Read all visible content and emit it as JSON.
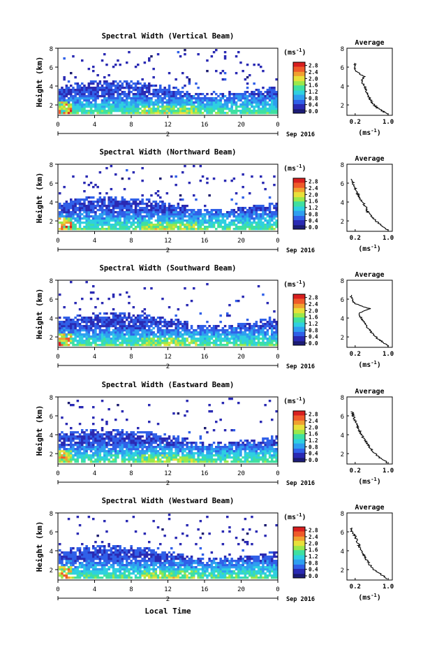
{
  "figure": {
    "xaxis_title": "Local Time",
    "colorbar_unit": "(ms",
    "colorbar_unit_sup": "-1",
    "colorbar_unit_close": ")",
    "avg_title": "Average",
    "avg_xunit": "(ms",
    "avg_xunit_sup": "-1",
    "avg_xunit_close": ")",
    "ylabel": "Height (km)",
    "date_label": "Sep 2016",
    "day_label": "2"
  },
  "colors": {
    "low": "#1d1d7a",
    "scale": [
      "#1b1b6f",
      "#2a2ab3",
      "#3060e8",
      "#2f9ff0",
      "#2fd0e0",
      "#3fe0a0",
      "#9be84a",
      "#e8e03a",
      "#f0a030",
      "#ef5a2a",
      "#d81f1f"
    ]
  },
  "chart_data": [
    {
      "type": "heatmap",
      "title": "Spectral Width (Vertical Beam)",
      "x_ticks": [
        "0",
        "4",
        "8",
        "12",
        "16",
        "20",
        "0"
      ],
      "x_range_hours": [
        0,
        24
      ],
      "y_ticks": [
        "2",
        "4",
        "6",
        "8"
      ],
      "ylim_km": [
        0.9,
        8.0
      ],
      "colorbar_ticks": [
        "0.0",
        "0.4",
        "0.8",
        "1.2",
        "1.6",
        "2.0",
        "2.4",
        "2.8"
      ],
      "clim": [
        0,
        3.0
      ],
      "average_profile": {
        "x_ticks": [
          "0.2",
          "1.0"
        ],
        "y_ticks": [
          "2",
          "4",
          "6",
          "8"
        ],
        "xlim": [
          0,
          1.1
        ],
        "height_km": [
          1.0,
          1.5,
          2.0,
          2.5,
          3.0,
          3.5,
          4.0,
          4.5,
          5.0,
          5.5,
          6.0,
          6.5
        ],
        "width_ms": [
          1.0,
          0.8,
          0.65,
          0.58,
          0.52,
          0.47,
          0.42,
          0.35,
          0.42,
          0.25,
          0.18,
          0.22
        ]
      }
    },
    {
      "type": "heatmap",
      "title": "Spectral Width (Northward Beam)",
      "x_ticks": [
        "0",
        "4",
        "8",
        "12",
        "16",
        "20",
        "0"
      ],
      "x_range_hours": [
        0,
        24
      ],
      "y_ticks": [
        "2",
        "4",
        "6",
        "8"
      ],
      "ylim_km": [
        0.9,
        8.0
      ],
      "colorbar_ticks": [
        "0.0",
        "0.4",
        "0.8",
        "1.2",
        "1.6",
        "2.0",
        "2.4",
        "2.8"
      ],
      "clim": [
        0,
        3.0
      ],
      "average_profile": {
        "x_ticks": [
          "0.2",
          "1.0"
        ],
        "y_ticks": [
          "2",
          "4",
          "6",
          "8"
        ],
        "xlim": [
          0,
          1.1
        ],
        "height_km": [
          1.0,
          1.5,
          2.0,
          2.5,
          3.0,
          3.5,
          4.0,
          4.5,
          5.0,
          5.5,
          6.0,
          6.5
        ],
        "width_ms": [
          1.0,
          0.85,
          0.7,
          0.6,
          0.5,
          0.45,
          0.38,
          0.3,
          0.25,
          0.2,
          0.15,
          0.12
        ]
      }
    },
    {
      "type": "heatmap",
      "title": "Spectral Width (Southward Beam)",
      "x_ticks": [
        "0",
        "4",
        "8",
        "12",
        "16",
        "20",
        "0"
      ],
      "x_range_hours": [
        0,
        24
      ],
      "y_ticks": [
        "2",
        "4",
        "6",
        "8"
      ],
      "ylim_km": [
        0.9,
        8.0
      ],
      "colorbar_ticks": [
        "0.0",
        "0.4",
        "0.8",
        "1.2",
        "1.6",
        "2.0",
        "2.4",
        "2.8"
      ],
      "clim": [
        0,
        3.0
      ],
      "average_profile": {
        "x_ticks": [
          "0.2",
          "1.0"
        ],
        "y_ticks": [
          "2",
          "4",
          "6",
          "8"
        ],
        "xlim": [
          0,
          1.1
        ],
        "height_km": [
          1.0,
          1.5,
          2.0,
          2.5,
          3.0,
          3.5,
          4.0,
          4.5,
          5.0,
          5.5,
          6.0,
          6.5
        ],
        "width_ms": [
          1.0,
          0.85,
          0.7,
          0.58,
          0.5,
          0.42,
          0.35,
          0.28,
          0.55,
          0.2,
          0.12,
          0.1
        ]
      }
    },
    {
      "type": "heatmap",
      "title": "Spectral Width (Eastward Beam)",
      "x_ticks": [
        "0",
        "4",
        "8",
        "12",
        "16",
        "20",
        "0"
      ],
      "x_range_hours": [
        0,
        24
      ],
      "y_ticks": [
        "2",
        "4",
        "6",
        "8"
      ],
      "ylim_km": [
        0.9,
        8.0
      ],
      "colorbar_ticks": [
        "0.0",
        "0.4",
        "0.8",
        "1.2",
        "1.6",
        "2.0",
        "2.4",
        "2.8"
      ],
      "clim": [
        0,
        3.0
      ],
      "average_profile": {
        "x_ticks": [
          "0.2",
          "1.0"
        ],
        "y_ticks": [
          "2",
          "4",
          "6",
          "8"
        ],
        "xlim": [
          0,
          1.1
        ],
        "height_km": [
          1.0,
          1.5,
          2.0,
          2.5,
          3.0,
          3.5,
          4.0,
          4.5,
          5.0,
          5.5,
          6.0,
          6.5
        ],
        "width_ms": [
          1.0,
          0.82,
          0.68,
          0.58,
          0.5,
          0.42,
          0.35,
          0.3,
          0.25,
          0.2,
          0.15,
          0.12
        ]
      }
    },
    {
      "type": "heatmap",
      "title": "Spectral Width (Westward Beam)",
      "x_ticks": [
        "0",
        "4",
        "8",
        "12",
        "16",
        "20",
        "0"
      ],
      "x_range_hours": [
        0,
        24
      ],
      "y_ticks": [
        "2",
        "4",
        "6",
        "8"
      ],
      "ylim_km": [
        0.9,
        8.0
      ],
      "colorbar_ticks": [
        "0.0",
        "0.4",
        "0.8",
        "1.2",
        "1.6",
        "2.0",
        "2.4",
        "2.8"
      ],
      "clim": [
        0,
        3.0
      ],
      "average_profile": {
        "x_ticks": [
          "0.2",
          "1.0"
        ],
        "y_ticks": [
          "2",
          "4",
          "6",
          "8"
        ],
        "xlim": [
          0,
          1.1
        ],
        "height_km": [
          1.0,
          1.5,
          2.0,
          2.5,
          3.0,
          3.5,
          4.0,
          4.5,
          5.0,
          5.5,
          6.0,
          6.5
        ],
        "width_ms": [
          1.0,
          0.82,
          0.66,
          0.56,
          0.48,
          0.42,
          0.36,
          0.3,
          0.25,
          0.2,
          0.12,
          0.1
        ]
      }
    }
  ]
}
